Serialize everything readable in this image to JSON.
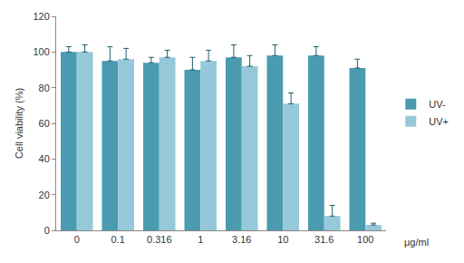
{
  "chart_data": {
    "type": "bar",
    "y_label": "Cell viability (%)",
    "x_label": "μg/ml",
    "categories": [
      "0",
      "0.1",
      "0.316",
      "1",
      "3.16",
      "10",
      "31.6",
      "100"
    ],
    "series": [
      {
        "name": "UV-",
        "color": "#4a9bb0",
        "values": [
          100,
          95,
          94,
          90,
          97,
          98,
          98,
          91
        ],
        "errors": [
          3,
          8,
          3,
          7,
          7,
          6,
          5,
          5
        ]
      },
      {
        "name": "UV+",
        "color": "#95c8d8",
        "values": [
          100,
          96,
          97,
          95,
          92,
          71,
          8,
          3
        ],
        "errors": [
          4,
          6,
          4,
          6,
          6,
          6,
          6,
          1
        ]
      }
    ],
    "ylim": [
      0,
      120
    ],
    "yticks": [
      0,
      20,
      40,
      60,
      80,
      100,
      120
    ],
    "grid": false,
    "legend": "right"
  }
}
